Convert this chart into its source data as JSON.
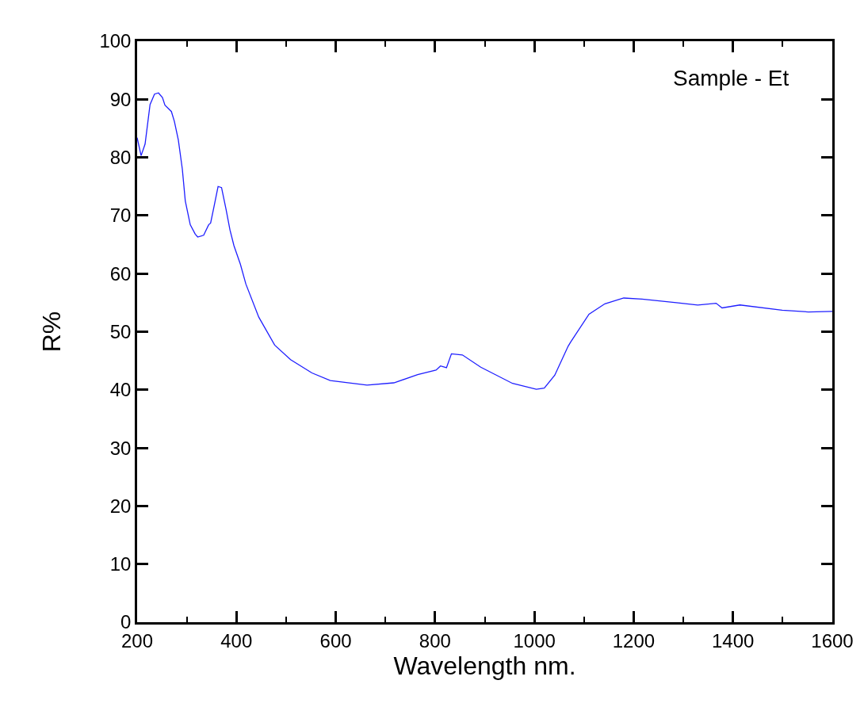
{
  "chart_data": {
    "type": "line",
    "xlabel": "Wavelength nm.",
    "ylabel": "R%",
    "annotations": [
      "Sample - Et"
    ],
    "x": [
      200,
      208,
      216,
      226,
      235,
      243,
      251,
      256,
      269,
      275,
      283,
      291,
      297,
      307,
      317,
      322,
      334,
      344,
      348,
      355,
      363,
      370,
      379,
      387,
      395,
      408,
      419,
      445,
      477,
      509,
      552,
      589,
      663,
      717,
      765,
      802,
      811,
      823,
      833,
      855,
      892,
      956,
      1004,
      1020,
      1041,
      1068,
      1073,
      1110,
      1142,
      1180,
      1217,
      1286,
      1329,
      1366,
      1378,
      1414,
      1499,
      1552,
      1600
    ],
    "series": [
      {
        "color": "#1f1fff",
        "values": [
          83.4,
          80.3,
          82.3,
          89.1,
          90.9,
          91.1,
          90.3,
          89.0,
          87.9,
          86.2,
          83.0,
          78.0,
          72.5,
          68.4,
          66.8,
          66.3,
          66.6,
          68.4,
          68.7,
          71.6,
          75.0,
          74.8,
          71.1,
          67.5,
          64.8,
          61.6,
          58.2,
          52.5,
          47.7,
          45.2,
          42.9,
          41.6,
          40.8,
          41.2,
          42.6,
          43.4,
          44.1,
          43.8,
          46.2,
          46.0,
          43.9,
          41.1,
          40.1,
          40.3,
          42.5,
          47.5,
          48.2,
          53.0,
          54.8,
          55.8,
          55.6,
          55.0,
          54.6,
          54.9,
          54.1,
          54.6,
          53.7,
          53.4,
          53.5
        ]
      }
    ],
    "xlim": [
      200,
      1600
    ],
    "xticks": [
      200,
      400,
      600,
      800,
      1000,
      1200,
      1400,
      1600
    ],
    "ylim": [
      0,
      100
    ],
    "yticks": [
      0,
      10,
      20,
      30,
      40,
      50,
      60,
      70,
      80,
      90,
      100
    ],
    "grid": false,
    "marker": "none",
    "line_style": "solid"
  }
}
